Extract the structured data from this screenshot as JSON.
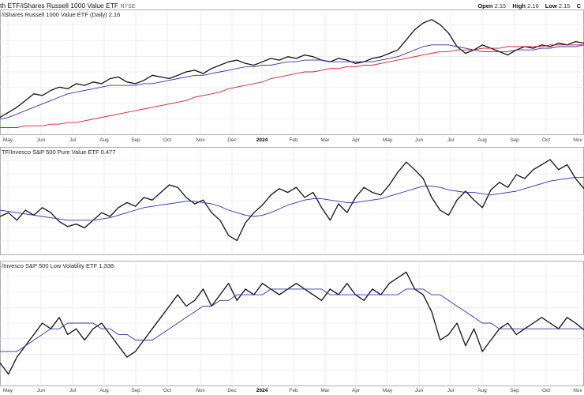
{
  "header": {
    "title": "th ETF/iShares Russell 1000 Value ETF",
    "exchange": "NYSE",
    "ohlc": {
      "open_label": "Open",
      "open": "2.15",
      "high_label": "High",
      "high": "2.16",
      "low_label": "Low",
      "low": "2.15",
      "close_label": "C"
    }
  },
  "chart_data": [
    {
      "type": "line",
      "label": "/iShares Russell 1000 Value ETF (Daily) 2.16",
      "series": [
        {
          "values": [
            1.72,
            1.75,
            1.78,
            1.82,
            1.86,
            1.85,
            1.88,
            1.9,
            1.89,
            1.92,
            1.91,
            1.93,
            1.92,
            1.95,
            1.96,
            1.93,
            1.92,
            1.94,
            1.97,
            1.96,
            1.95,
            1.97,
            1.99,
            2.0,
            1.98,
            2.01,
            2.03,
            2.05,
            2.06,
            2.04,
            2.03,
            2.05,
            2.07,
            2.06,
            2.08,
            2.07,
            2.09,
            2.08,
            2.06,
            2.05,
            2.07,
            2.06,
            2.04,
            2.05,
            2.07,
            2.08,
            2.1,
            2.12,
            2.18,
            2.24,
            2.28,
            2.3,
            2.27,
            2.22,
            2.14,
            2.1,
            2.12,
            2.15,
            2.13,
            2.11,
            2.09,
            2.12,
            2.14,
            2.13,
            2.15,
            2.14,
            2.16,
            2.15,
            2.17,
            2.16
          ]
        },
        {
          "values": [
            1.71,
            1.72,
            1.74,
            1.76,
            1.78,
            1.8,
            1.82,
            1.84,
            1.86,
            1.87,
            1.88,
            1.89,
            1.9,
            1.91,
            1.91,
            1.91,
            1.91,
            1.92,
            1.92,
            1.93,
            1.94,
            1.95,
            1.96,
            1.97,
            1.97,
            1.98,
            1.99,
            2.0,
            2.01,
            2.02,
            2.02,
            2.03,
            2.03,
            2.04,
            2.05,
            2.05,
            2.06,
            2.06,
            2.06,
            2.05,
            2.05,
            2.05,
            2.05,
            2.05,
            2.05,
            2.06,
            2.07,
            2.08,
            2.1,
            2.12,
            2.14,
            2.15,
            2.15,
            2.15,
            2.14,
            2.13,
            2.12,
            2.11,
            2.11,
            2.11,
            2.11,
            2.12,
            2.12,
            2.12,
            2.13,
            2.13,
            2.14,
            2.14,
            2.14,
            2.15
          ]
        },
        {
          "values": [
            1.66,
            1.66,
            1.66,
            1.67,
            1.67,
            1.67,
            1.68,
            1.68,
            1.69,
            1.69,
            1.7,
            1.71,
            1.72,
            1.73,
            1.74,
            1.75,
            1.76,
            1.77,
            1.78,
            1.79,
            1.8,
            1.81,
            1.82,
            1.84,
            1.85,
            1.86,
            1.87,
            1.89,
            1.9,
            1.91,
            1.92,
            1.93,
            1.95,
            1.96,
            1.97,
            1.98,
            1.99,
            1.99,
            2.0,
            2.01,
            2.01,
            2.02,
            2.02,
            2.03,
            2.03,
            2.04,
            2.05,
            2.06,
            2.07,
            2.08,
            2.09,
            2.1,
            2.11,
            2.11,
            2.12,
            2.12,
            2.12,
            2.13,
            2.13,
            2.13,
            2.14,
            2.14,
            2.14,
            2.14,
            2.14,
            2.15,
            2.15,
            2.15,
            2.15,
            2.15
          ]
        }
      ],
      "ylim": [
        1.62,
        2.36
      ]
    },
    {
      "type": "line",
      "label": "TF/Invesco S&P 500 Pure Value ETF 0.477",
      "series": [
        {
          "values": [
            0.455,
            0.458,
            0.452,
            0.46,
            0.456,
            0.462,
            0.458,
            0.451,
            0.447,
            0.449,
            0.446,
            0.452,
            0.458,
            0.455,
            0.462,
            0.466,
            0.463,
            0.47,
            0.468,
            0.474,
            0.48,
            0.478,
            0.47,
            0.465,
            0.468,
            0.458,
            0.452,
            0.44,
            0.436,
            0.45,
            0.458,
            0.464,
            0.472,
            0.477,
            0.474,
            0.478,
            0.47,
            0.474,
            0.462,
            0.452,
            0.465,
            0.458,
            0.47,
            0.478,
            0.474,
            0.472,
            0.48,
            0.49,
            0.498,
            0.492,
            0.485,
            0.47,
            0.46,
            0.456,
            0.468,
            0.475,
            0.468,
            0.462,
            0.476,
            0.482,
            0.478,
            0.488,
            0.485,
            0.492,
            0.496,
            0.5,
            0.492,
            0.496,
            0.485,
            0.477
          ]
        },
        {
          "values": [
            0.46,
            0.459,
            0.458,
            0.457,
            0.456,
            0.455,
            0.454,
            0.453,
            0.452,
            0.452,
            0.452,
            0.452,
            0.453,
            0.454,
            0.456,
            0.458,
            0.46,
            0.462,
            0.463,
            0.464,
            0.465,
            0.466,
            0.467,
            0.467,
            0.466,
            0.465,
            0.463,
            0.46,
            0.458,
            0.456,
            0.455,
            0.456,
            0.458,
            0.461,
            0.464,
            0.466,
            0.468,
            0.469,
            0.469,
            0.468,
            0.467,
            0.466,
            0.466,
            0.467,
            0.468,
            0.469,
            0.471,
            0.473,
            0.475,
            0.477,
            0.479,
            0.479,
            0.478,
            0.476,
            0.475,
            0.474,
            0.474,
            0.473,
            0.472,
            0.473,
            0.474,
            0.475,
            0.477,
            0.479,
            0.481,
            0.483,
            0.484,
            0.485,
            0.486,
            0.486
          ]
        }
      ],
      "ylim": [
        0.425,
        0.51
      ]
    },
    {
      "type": "line",
      "label": "/Invesco S&P 500 Low Volatility ETF 1.338",
      "series": [
        {
          "values": [
            1.28,
            1.26,
            1.29,
            1.31,
            1.33,
            1.35,
            1.34,
            1.36,
            1.33,
            1.34,
            1.32,
            1.34,
            1.35,
            1.33,
            1.31,
            1.29,
            1.3,
            1.32,
            1.34,
            1.36,
            1.38,
            1.4,
            1.38,
            1.39,
            1.41,
            1.38,
            1.4,
            1.42,
            1.39,
            1.41,
            1.4,
            1.42,
            1.41,
            1.4,
            1.41,
            1.42,
            1.41,
            1.4,
            1.39,
            1.41,
            1.4,
            1.42,
            1.4,
            1.39,
            1.41,
            1.4,
            1.42,
            1.43,
            1.44,
            1.41,
            1.4,
            1.37,
            1.32,
            1.33,
            1.35,
            1.31,
            1.34,
            1.3,
            1.32,
            1.34,
            1.35,
            1.33,
            1.34,
            1.35,
            1.36,
            1.35,
            1.34,
            1.36,
            1.35,
            1.338
          ]
        },
        {
          "values": [
            1.3,
            1.3,
            1.3,
            1.31,
            1.32,
            1.33,
            1.34,
            1.34,
            1.35,
            1.35,
            1.35,
            1.35,
            1.34,
            1.34,
            1.33,
            1.33,
            1.32,
            1.32,
            1.32,
            1.33,
            1.34,
            1.35,
            1.36,
            1.37,
            1.38,
            1.38,
            1.39,
            1.39,
            1.4,
            1.4,
            1.4,
            1.4,
            1.41,
            1.41,
            1.41,
            1.41,
            1.41,
            1.41,
            1.41,
            1.4,
            1.4,
            1.4,
            1.4,
            1.4,
            1.4,
            1.4,
            1.4,
            1.4,
            1.41,
            1.41,
            1.41,
            1.4,
            1.4,
            1.39,
            1.38,
            1.37,
            1.36,
            1.35,
            1.35,
            1.34,
            1.34,
            1.34,
            1.34,
            1.34,
            1.34,
            1.34,
            1.34,
            1.34,
            1.34,
            1.34
          ]
        }
      ],
      "ylim": [
        1.24,
        1.46
      ]
    }
  ],
  "axis": {
    "months_top": [
      "May",
      "Jun",
      "Jul",
      "Aug",
      "Sep",
      "Oct",
      "Nov",
      "Dec",
      "2024",
      "Feb",
      "Mar",
      "Apr",
      "May",
      "Jun",
      "Jul",
      "Aug",
      "Sep",
      "Oct",
      "Nov"
    ],
    "months_bottom": [
      "May",
      "Jun",
      "Jul",
      "Aug",
      "Sep",
      "Oct",
      "Nov",
      "Dec",
      "2024",
      "Feb",
      "Mar",
      "Apr",
      "May",
      "Jun",
      "Jul",
      "Aug",
      "Sep",
      "Oct",
      "Nov"
    ],
    "bold_label": "2024"
  },
  "colors": {
    "price": "#111111",
    "ma_fast": "#3333aa",
    "ma_slow": "#cc2233",
    "grid": "#e2e2e2",
    "frame": "#999999"
  }
}
